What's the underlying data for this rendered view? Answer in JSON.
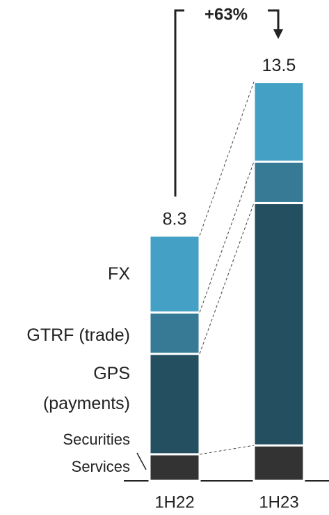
{
  "chart_data": {
    "type": "stacked-bar",
    "categories": [
      "1H22",
      "1H23"
    ],
    "series": [
      {
        "name": "Securities Services",
        "color": "#333333",
        "values": [
          0.9,
          1.2
        ]
      },
      {
        "name": "GPS (payments)",
        "color": "#234f60",
        "values": [
          3.4,
          8.2
        ]
      },
      {
        "name": "GTRF (trade)",
        "color": "#367a95",
        "values": [
          1.4,
          1.4
        ]
      },
      {
        "name": "FX",
        "color": "#44a0c4",
        "values": [
          2.6,
          2.7
        ]
      }
    ],
    "totals": [
      8.3,
      13.5
    ],
    "annotation": "+63%"
  }
}
